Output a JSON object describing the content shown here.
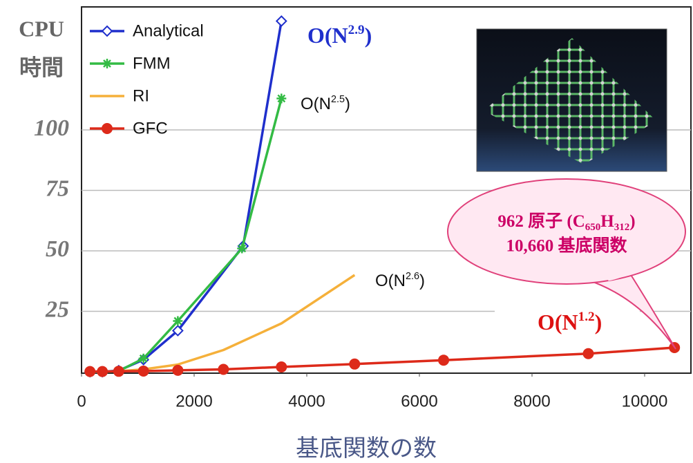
{
  "chart_data": {
    "type": "line",
    "x_label": "基底関数の数",
    "y_label": [
      "CPU",
      "時間"
    ],
    "xlim": [
      0,
      10850
    ],
    "ylim": [
      0,
      150
    ],
    "xticks": [
      0,
      2000,
      4000,
      6000,
      8000,
      10000
    ],
    "yticks": [
      25,
      50,
      75,
      100
    ],
    "grid": true,
    "legend": "upper left",
    "series": [
      {
        "name": "Analytical",
        "color": "#1f2fcc",
        "marker": "diamond",
        "x": [
          150,
          370,
          660,
          1100,
          1710,
          2870,
          3550
        ],
        "values": [
          0,
          0,
          0.5,
          5,
          17,
          52,
          145
        ]
      },
      {
        "name": "FMM",
        "color": "#33bb44",
        "marker": "star",
        "x": [
          150,
          370,
          660,
          1100,
          1710,
          2850,
          3550
        ],
        "values": [
          0,
          0,
          0.3,
          5.5,
          21,
          51,
          113
        ]
      },
      {
        "name": "RI",
        "color": "#f5b03a",
        "marker": "none",
        "x": [
          660,
          1100,
          1710,
          2520,
          3550,
          4850
        ],
        "values": [
          0.2,
          1,
          3,
          9,
          20,
          40
        ]
      },
      {
        "name": "GFC",
        "color": "#dd2a1a",
        "marker": "circle",
        "x": [
          150,
          370,
          660,
          1100,
          1710,
          2520,
          3550,
          4850,
          6430,
          9000,
          10530
        ],
        "values": [
          0.1,
          0.1,
          0.2,
          0.3,
          0.6,
          1,
          2,
          3.2,
          4.8,
          7.5,
          10
        ]
      }
    ],
    "annotations": [
      {
        "base": "O(N",
        "sup": "2.9",
        "close": ")"
      },
      {
        "base": "O(N",
        "sup": "2.5",
        "close": ")"
      },
      {
        "base": "O(N",
        "sup": "2.6",
        "close": ")"
      },
      {
        "base": "O(N",
        "sup": "1.2",
        "close": ")"
      }
    ],
    "callout": {
      "line1": {
        "a": "962 原子 (C",
        "sub1": "650",
        "b": "H",
        "sub2": "312",
        "c": ")"
      },
      "line2": "10,660 基底関数"
    }
  }
}
